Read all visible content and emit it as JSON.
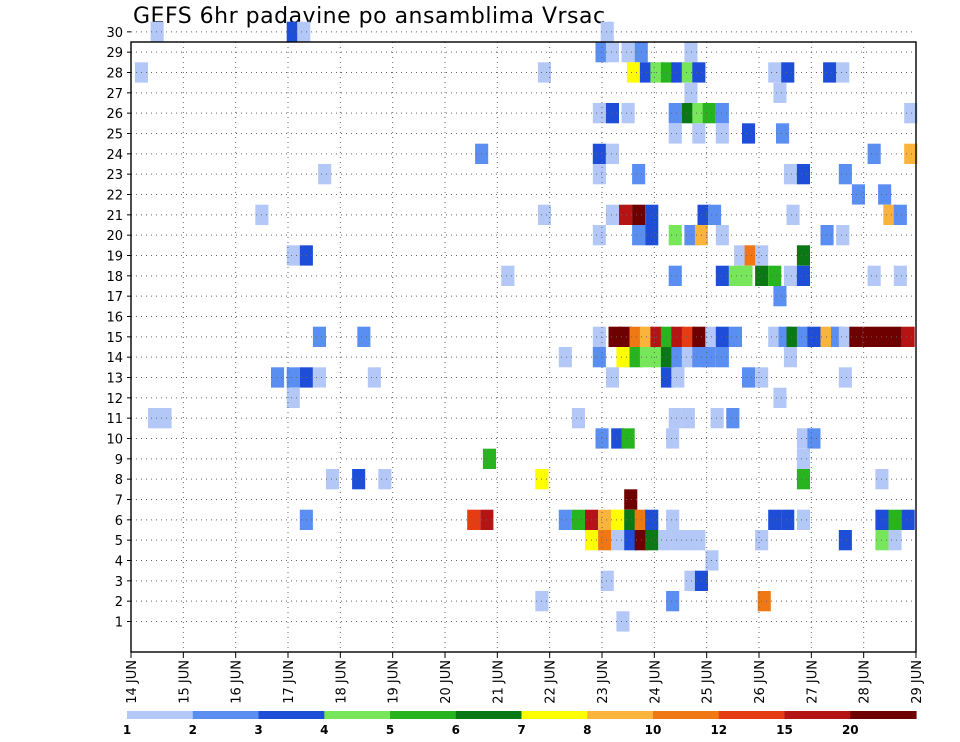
{
  "chart_data": {
    "type": "heatmap",
    "title": "GEFS 6hr padavine po ansamblima Vrsac",
    "xlabel": "",
    "ylabel": "",
    "x_tick_labels": [
      "14 JUN",
      "15 JUN",
      "16 JUN",
      "17 JUN",
      "18 JUN",
      "19 JUN",
      "20 JUN",
      "21 JUN",
      "22 JUN",
      "23 JUN",
      "24 JUN",
      "25 JUN",
      "26 JUN",
      "27 JUN",
      "28 JUN",
      "29 JUN"
    ],
    "xlim_days": [
      14,
      29
    ],
    "y_tick_labels": [
      "1",
      "2",
      "3",
      "4",
      "5",
      "6",
      "7",
      "8",
      "9",
      "10",
      "11",
      "12",
      "13",
      "14",
      "15",
      "16",
      "17",
      "18",
      "19",
      "20",
      "21",
      "22",
      "23",
      "24",
      "25",
      "26",
      "27",
      "28",
      "29",
      "30"
    ],
    "ylim": [
      0,
      30
    ],
    "grid": true,
    "colorbar": {
      "position": "bottom",
      "tick_labels": [
        "1",
        "2",
        "3",
        "4",
        "5",
        "6",
        "7",
        "8",
        "10",
        "12",
        "15",
        "20"
      ],
      "colors": [
        "#b4c8f8",
        "#5a8ef0",
        "#1e4ed8",
        "#78e65a",
        "#28b41e",
        "#0a7814",
        "#ffff00",
        "#fab43c",
        "#f07814",
        "#e63c14",
        "#b41414",
        "#6e0000"
      ]
    },
    "cells": [
      [
        "30",
        14.5,
        1
      ],
      [
        "30",
        17.1,
        3
      ],
      [
        "30",
        17.3,
        1
      ],
      [
        "30",
        23.1,
        1
      ],
      [
        "29",
        23,
        2
      ],
      [
        "29",
        23.2,
        1
      ],
      [
        "29",
        23.5,
        1
      ],
      [
        "29",
        23.75,
        2
      ],
      [
        "29",
        24.7,
        1
      ],
      [
        "28",
        14.2,
        1
      ],
      [
        "28",
        21.9,
        1
      ],
      [
        "28",
        23.6,
        7
      ],
      [
        "28",
        23.85,
        3
      ],
      [
        "28",
        24.05,
        4
      ],
      [
        "28",
        24.25,
        5
      ],
      [
        "28",
        24.45,
        3
      ],
      [
        "28",
        24.65,
        4
      ],
      [
        "28",
        24.85,
        3
      ],
      [
        "28",
        26.3,
        1
      ],
      [
        "28",
        26.55,
        3
      ],
      [
        "28",
        27.35,
        3
      ],
      [
        "28",
        27.6,
        1
      ],
      [
        "27",
        24.7,
        1
      ],
      [
        "27",
        26.4,
        1
      ],
      [
        "26",
        22.95,
        1
      ],
      [
        "26",
        23.2,
        3
      ],
      [
        "26",
        23.5,
        1
      ],
      [
        "26",
        24.4,
        2
      ],
      [
        "26",
        24.65,
        6
      ],
      [
        "26",
        24.85,
        4
      ],
      [
        "26",
        25.05,
        5
      ],
      [
        "26",
        25.3,
        2
      ],
      [
        "26",
        28.9,
        1
      ],
      [
        "25",
        24.4,
        1
      ],
      [
        "25",
        24.85,
        1
      ],
      [
        "25",
        25.3,
        1
      ],
      [
        "25",
        25.8,
        3
      ],
      [
        "25",
        26.45,
        2
      ],
      [
        "24",
        20.7,
        2
      ],
      [
        "24",
        22.95,
        3
      ],
      [
        "24",
        23.2,
        1
      ],
      [
        "24",
        28.2,
        2
      ],
      [
        "24",
        28.9,
        8
      ],
      [
        "23",
        17.7,
        1
      ],
      [
        "23",
        22.95,
        1
      ],
      [
        "23",
        23.7,
        2
      ],
      [
        "23",
        26.6,
        1
      ],
      [
        "23",
        26.85,
        3
      ],
      [
        "23",
        27.65,
        2
      ],
      [
        "22",
        27.9,
        2
      ],
      [
        "22",
        28.4,
        2
      ],
      [
        "21",
        16.5,
        1
      ],
      [
        "21",
        21.9,
        1
      ],
      [
        "21",
        23.2,
        1
      ],
      [
        "21",
        23.45,
        11
      ],
      [
        "21",
        23.7,
        12
      ],
      [
        "21",
        23.95,
        3
      ],
      [
        "21",
        24.95,
        3
      ],
      [
        "21",
        25.15,
        2
      ],
      [
        "21",
        26.65,
        1
      ],
      [
        "21",
        28.5,
        8
      ],
      [
        "21",
        28.7,
        2
      ],
      [
        "20",
        22.95,
        1
      ],
      [
        "20",
        23.7,
        2
      ],
      [
        "20",
        23.95,
        3
      ],
      [
        "20",
        24.4,
        4
      ],
      [
        "20",
        24.7,
        2
      ],
      [
        "20",
        24.9,
        8
      ],
      [
        "20",
        25.3,
        1
      ],
      [
        "20",
        27.3,
        2
      ],
      [
        "20",
        27.6,
        1
      ],
      [
        "19",
        17.1,
        1
      ],
      [
        "19",
        17.35,
        3
      ],
      [
        "19",
        25.65,
        1
      ],
      [
        "19",
        25.85,
        9
      ],
      [
        "19",
        26.05,
        1
      ],
      [
        "19",
        26.85,
        6
      ],
      [
        "18",
        21.2,
        1
      ],
      [
        "18",
        24.4,
        2
      ],
      [
        "18",
        25.3,
        3
      ],
      [
        "18",
        25.55,
        4
      ],
      [
        "18",
        25.75,
        4
      ],
      [
        "18",
        26.05,
        6
      ],
      [
        "18",
        26.3,
        5
      ],
      [
        "18",
        26.6,
        1
      ],
      [
        "18",
        26.85,
        3
      ],
      [
        "18",
        28.2,
        1
      ],
      [
        "18",
        28.7,
        1
      ],
      [
        "17",
        26.4,
        2
      ],
      [
        "15",
        17.6,
        2
      ],
      [
        "15",
        18.45,
        2
      ],
      [
        "15",
        22.95,
        1
      ],
      [
        "15",
        23.25,
        12
      ],
      [
        "15",
        23.45,
        12
      ],
      [
        "15",
        23.65,
        9
      ],
      [
        "15",
        23.85,
        8
      ],
      [
        "15",
        24.05,
        11
      ],
      [
        "15",
        24.25,
        5
      ],
      [
        "15",
        24.45,
        11
      ],
      [
        "15",
        24.65,
        10
      ],
      [
        "15",
        24.85,
        12
      ],
      [
        "15",
        25.1,
        1
      ],
      [
        "15",
        25.3,
        3
      ],
      [
        "15",
        25.55,
        2
      ],
      [
        "15",
        26.3,
        1
      ],
      [
        "15",
        26.5,
        2
      ],
      [
        "15",
        26.65,
        6
      ],
      [
        "15",
        26.85,
        2
      ],
      [
        "15",
        27.05,
        3
      ],
      [
        "15",
        27.3,
        8
      ],
      [
        "15",
        27.5,
        2
      ],
      [
        "15",
        27.65,
        1
      ],
      [
        "15",
        27.85,
        12
      ],
      [
        "15",
        28.1,
        12
      ],
      [
        "15",
        28.35,
        12
      ],
      [
        "15",
        28.6,
        12
      ],
      [
        "15",
        28.85,
        11
      ],
      [
        "14",
        22.3,
        1
      ],
      [
        "14",
        22.95,
        2
      ],
      [
        "14",
        23.4,
        7
      ],
      [
        "14",
        23.65,
        5
      ],
      [
        "14",
        23.85,
        4
      ],
      [
        "14",
        24.05,
        4
      ],
      [
        "14",
        24.25,
        6
      ],
      [
        "14",
        24.45,
        2
      ],
      [
        "14",
        24.65,
        1
      ],
      [
        "14",
        24.85,
        2
      ],
      [
        "14",
        25.05,
        2
      ],
      [
        "14",
        25.3,
        2
      ],
      [
        "14",
        26.6,
        1
      ],
      [
        "13",
        16.8,
        2
      ],
      [
        "13",
        17.1,
        2
      ],
      [
        "13",
        17.35,
        3
      ],
      [
        "13",
        17.6,
        1
      ],
      [
        "13",
        18.65,
        1
      ],
      [
        "13",
        23.2,
        1
      ],
      [
        "13",
        24.25,
        3
      ],
      [
        "13",
        24.45,
        1
      ],
      [
        "13",
        25.8,
        2
      ],
      [
        "13",
        26.05,
        1
      ],
      [
        "13",
        27.65,
        1
      ],
      [
        "12",
        17.1,
        1
      ],
      [
        "12",
        26.4,
        1
      ],
      [
        "11",
        14.45,
        1
      ],
      [
        "11",
        14.65,
        1
      ],
      [
        "11",
        22.55,
        1
      ],
      [
        "11",
        24.4,
        1
      ],
      [
        "11",
        24.65,
        1
      ],
      [
        "11",
        25.2,
        1
      ],
      [
        "11",
        25.5,
        2
      ],
      [
        "10",
        23,
        2
      ],
      [
        "10",
        23.3,
        3
      ],
      [
        "10",
        23.5,
        5
      ],
      [
        "10",
        24.35,
        1
      ],
      [
        "10",
        26.85,
        1
      ],
      [
        "10",
        27.05,
        2
      ],
      [
        "9",
        20.85,
        5
      ],
      [
        "9",
        26.85,
        1
      ],
      [
        "8",
        17.85,
        1
      ],
      [
        "8",
        18.35,
        3
      ],
      [
        "8",
        18.85,
        1
      ],
      [
        "8",
        21.85,
        7
      ],
      [
        "8",
        26.85,
        5
      ],
      [
        "8",
        28.35,
        1
      ],
      [
        "7",
        23.55,
        12
      ],
      [
        "6",
        17.35,
        2
      ],
      [
        "6",
        20.55,
        10
      ],
      [
        "6",
        20.8,
        11
      ],
      [
        "6",
        22.3,
        2
      ],
      [
        "6",
        22.55,
        5
      ],
      [
        "6",
        22.8,
        11
      ],
      [
        "6",
        23.05,
        8
      ],
      [
        "6",
        23.3,
        7
      ],
      [
        "6",
        23.55,
        6
      ],
      [
        "6",
        23.75,
        9
      ],
      [
        "6",
        23.95,
        3
      ],
      [
        "6",
        24.35,
        1
      ],
      [
        "6",
        26.3,
        3
      ],
      [
        "6",
        26.55,
        3
      ],
      [
        "6",
        26.85,
        1
      ],
      [
        "6",
        28.35,
        3
      ],
      [
        "6",
        28.6,
        5
      ],
      [
        "6",
        28.85,
        3
      ],
      [
        "5",
        22.8,
        7
      ],
      [
        "5",
        23.05,
        9
      ],
      [
        "5",
        23.3,
        1
      ],
      [
        "5",
        23.55,
        3
      ],
      [
        "5",
        23.75,
        12
      ],
      [
        "5",
        23.95,
        6
      ],
      [
        "5",
        24.2,
        1
      ],
      [
        "5",
        24.45,
        1
      ],
      [
        "5",
        24.65,
        1
      ],
      [
        "5",
        24.85,
        1
      ],
      [
        "5",
        26.05,
        1
      ],
      [
        "5",
        27.65,
        3
      ],
      [
        "5",
        28.35,
        4
      ],
      [
        "5",
        28.6,
        1
      ],
      [
        "4",
        25.1,
        1
      ],
      [
        "3",
        23.1,
        1
      ],
      [
        "3",
        24.7,
        1
      ],
      [
        "3",
        24.9,
        3
      ],
      [
        "2",
        21.85,
        1
      ],
      [
        "2",
        24.35,
        2
      ],
      [
        "2",
        26.1,
        9
      ],
      [
        "1",
        23.4,
        1
      ]
    ]
  }
}
